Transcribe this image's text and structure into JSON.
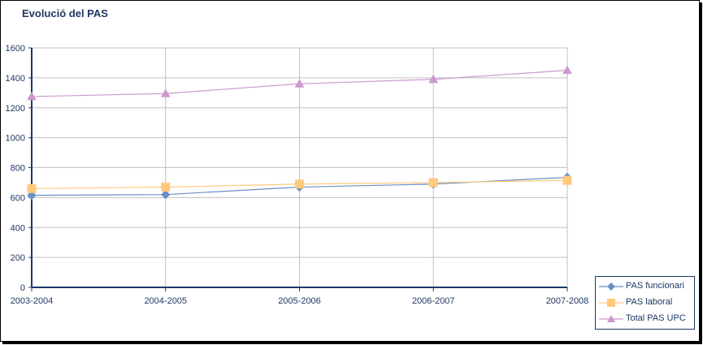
{
  "chart_data": {
    "type": "line",
    "title": "Evolució del PAS",
    "categories": [
      "2003-2004",
      "2004-2005",
      "2005-2006",
      "2006-2007",
      "2007-2008"
    ],
    "series": [
      {
        "name": "PAS funcionari",
        "values": [
          615,
          620,
          670,
          690,
          735
        ],
        "color": "#6b8fc4",
        "marker": "diamond"
      },
      {
        "name": "PAS laboral",
        "values": [
          660,
          670,
          690,
          700,
          715
        ],
        "color": "#ffc97d",
        "marker": "square"
      },
      {
        "name": "Total PAS UPC",
        "values": [
          1275,
          1295,
          1360,
          1390,
          1450
        ],
        "color": "#cc99cc",
        "marker": "triangle"
      }
    ],
    "ylim": [
      0,
      1600
    ],
    "yticks": [
      0,
      200,
      400,
      600,
      800,
      1000,
      1200,
      1400,
      1600
    ],
    "grid": true,
    "legend": "bottom-right",
    "axis_color": "#1f3864",
    "grid_color": "#c0c0c0"
  }
}
